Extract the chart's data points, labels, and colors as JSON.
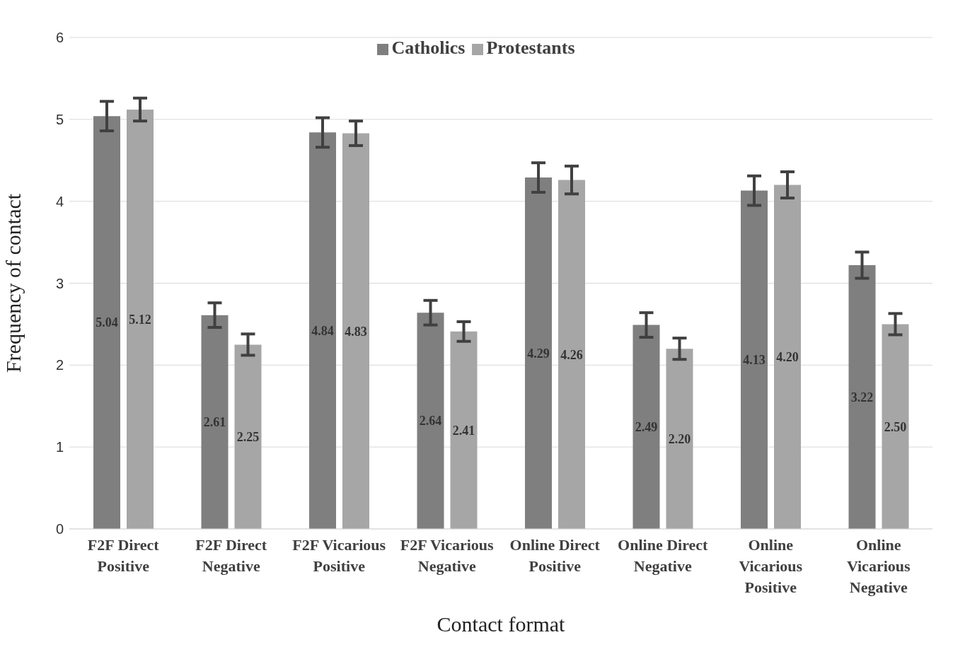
{
  "chart_data": {
    "type": "bar",
    "xlabel": "Contact format",
    "ylabel": "Frequency of contact",
    "categories": [
      "F2F Direct Positive",
      "F2F Direct Negative",
      "F2F Vicarious Positive",
      "F2F Vicarious Negative",
      "Online Direct Positive",
      "Online Direct Negative",
      "Online Vicarious Positive",
      "Online Vicarious Negative"
    ],
    "series": [
      {
        "name": "Catholics",
        "color": "#7f7f7f",
        "values": [
          5.04,
          2.61,
          4.84,
          2.64,
          4.29,
          2.49,
          4.13,
          3.22
        ],
        "errors": [
          0.18,
          0.15,
          0.18,
          0.15,
          0.18,
          0.15,
          0.18,
          0.16
        ],
        "value_labels": [
          "5.04",
          "2.61",
          "4.84",
          "2.64",
          "4.29",
          "2.49",
          "4.13",
          "3.22"
        ]
      },
      {
        "name": "Protestants",
        "color": "#a6a6a6",
        "values": [
          5.12,
          2.25,
          4.83,
          2.41,
          4.26,
          2.2,
          4.2,
          2.5
        ],
        "errors": [
          0.14,
          0.13,
          0.15,
          0.12,
          0.17,
          0.13,
          0.16,
          0.13
        ],
        "value_labels": [
          "5.12",
          "2.25",
          "4.83",
          "2.41",
          "4.26",
          "2.20",
          "4.20",
          "2.50"
        ]
      }
    ],
    "ylim": [
      0,
      6
    ],
    "yticks": [
      0,
      1,
      2,
      3,
      4,
      5,
      6
    ],
    "grid": "y",
    "legend": "top"
  }
}
